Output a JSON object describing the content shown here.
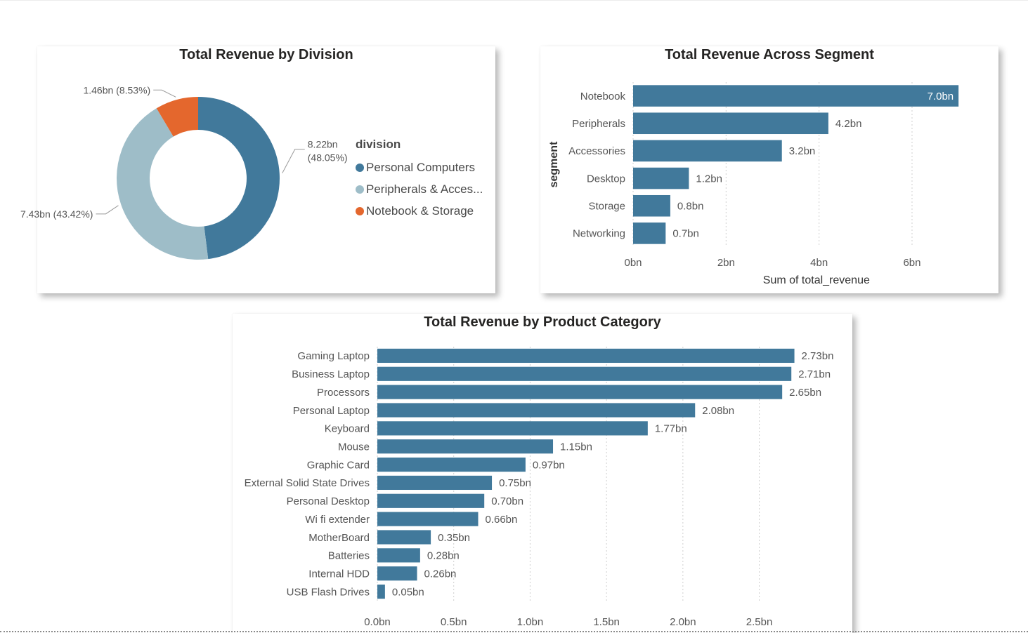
{
  "colors": {
    "primary_bar": "#41799b",
    "personal_computers": "#41799b",
    "peripherals": "#9ebdc8",
    "notebook_storage": "#e4672d",
    "label_text": "#555555",
    "grid": "#cfcfcf"
  },
  "chart_data": [
    {
      "type": "pie",
      "variant": "donut",
      "title": "Total Revenue by Division",
      "legend_title": "division",
      "legend_position": "right",
      "slices": [
        {
          "name": "Personal Computers",
          "legend_label": "Personal Computers",
          "value": 8.22,
          "percent": 48.05,
          "color": "#41799b",
          "label_line1": "8.22bn",
          "label_line2": "(48.05%)"
        },
        {
          "name": "Peripherals & Accessories",
          "legend_label": "Peripherals & Acces...",
          "value": 7.43,
          "percent": 43.42,
          "color": "#9ebdc8",
          "label_line1": "7.43bn (43.42%)",
          "label_line2": ""
        },
        {
          "name": "Notebook & Storage",
          "legend_label": "Notebook & Storage",
          "value": 1.46,
          "percent": 8.53,
          "color": "#e4672d",
          "label_line1": "1.46bn (8.53%)",
          "label_line2": ""
        }
      ]
    },
    {
      "type": "bar",
      "orientation": "horizontal",
      "title": "Total Revenue Across Segment",
      "xlabel": "Sum of total_revenue",
      "ylabel": "segment",
      "xlim": [
        0,
        7.3
      ],
      "xticks": [
        0,
        2,
        4,
        6
      ],
      "xtick_labels": [
        "0bn",
        "2bn",
        "4bn",
        "6bn"
      ],
      "grid": true,
      "categories": [
        "Notebook",
        "Peripherals",
        "Accessories",
        "Desktop",
        "Storage",
        "Networking"
      ],
      "values": [
        7.0,
        4.2,
        3.2,
        1.2,
        0.8,
        0.7
      ],
      "labels": [
        "7.0bn",
        "4.2bn",
        "3.2bn",
        "1.2bn",
        "0.8bn",
        "0.7bn"
      ]
    },
    {
      "type": "bar",
      "orientation": "horizontal",
      "title": "Total Revenue by Product Category",
      "xlabel": "",
      "ylabel": "",
      "xlim": [
        0,
        2.87
      ],
      "xticks": [
        0,
        0.5,
        1.0,
        1.5,
        2.0,
        2.5
      ],
      "xtick_labels": [
        "0.0bn",
        "0.5bn",
        "1.0bn",
        "1.5bn",
        "2.0bn",
        "2.5bn"
      ],
      "grid": true,
      "categories": [
        "Gaming Laptop",
        "Business Laptop",
        "Processors",
        "Personal Laptop",
        "Keyboard",
        "Mouse",
        "Graphic Card",
        "External Solid State Drives",
        "Personal Desktop",
        "Wi fi extender",
        "MotherBoard",
        "Batteries",
        "Internal HDD",
        "USB Flash Drives"
      ],
      "values": [
        2.73,
        2.71,
        2.65,
        2.08,
        1.77,
        1.15,
        0.97,
        0.75,
        0.7,
        0.66,
        0.35,
        0.28,
        0.26,
        0.05
      ],
      "labels": [
        "2.73bn",
        "2.71bn",
        "2.65bn",
        "2.08bn",
        "1.77bn",
        "1.15bn",
        "0.97bn",
        "0.75bn",
        "0.70bn",
        "0.66bn",
        "0.35bn",
        "0.28bn",
        "0.26bn",
        "0.05bn"
      ]
    }
  ]
}
